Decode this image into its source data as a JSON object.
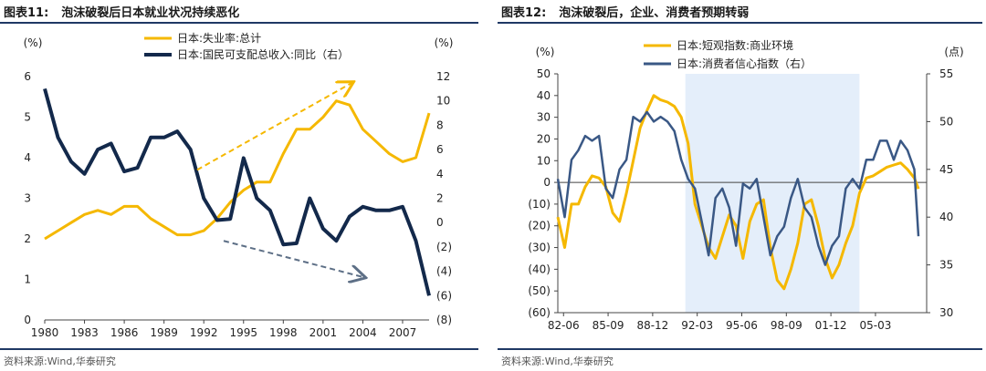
{
  "left": {
    "fig_no": "图表11:",
    "title": "泡沫破裂后日本就业状况持续恶化",
    "source": "资料来源:Wind,华泰研究",
    "unit_left": "(%)",
    "unit_right": "(%)",
    "legend": [
      "日本:失业率:总计",
      "日本:国民可支配总收入:同比（右）"
    ],
    "colors": {
      "series1": "#f5b800",
      "series2": "#13294b",
      "arrow": "#5d6f86"
    },
    "chart_data": {
      "type": "line",
      "x_ticks": [
        "1980",
        "1983",
        "1986",
        "1989",
        "1992",
        "1995",
        "1998",
        "2001",
        "2004",
        "2007"
      ],
      "xlim": [
        1980,
        2009
      ],
      "y_left": {
        "lim": [
          0,
          6
        ],
        "ticks": [
          "0",
          "1",
          "2",
          "3",
          "4",
          "5",
          "6"
        ]
      },
      "y_right": {
        "lim": [
          -8,
          12
        ],
        "ticks": [
          "(8)",
          "(6)",
          "(4)",
          "(2)",
          "0",
          "2",
          "4",
          "6",
          "8",
          "10",
          "12"
        ]
      },
      "series": [
        {
          "name": "日本:失业率:总计",
          "axis": "left",
          "x": [
            1980,
            1981,
            1982,
            1983,
            1984,
            1985,
            1986,
            1987,
            1988,
            1989,
            1990,
            1991,
            1992,
            1993,
            1994,
            1995,
            1996,
            1997,
            1998,
            1999,
            2000,
            2001,
            2002,
            2003,
            2004,
            2005,
            2006,
            2007,
            2008,
            2009
          ],
          "y": [
            2.0,
            2.2,
            2.4,
            2.6,
            2.7,
            2.6,
            2.8,
            2.8,
            2.5,
            2.3,
            2.1,
            2.1,
            2.2,
            2.5,
            2.9,
            3.2,
            3.4,
            3.4,
            4.1,
            4.7,
            4.7,
            5.0,
            5.4,
            5.3,
            4.7,
            4.4,
            4.1,
            3.9,
            4.0,
            5.1
          ]
        },
        {
          "name": "日本:国民可支配总收入:同比（右）",
          "axis": "right",
          "x": [
            1980,
            1981,
            1982,
            1983,
            1984,
            1985,
            1986,
            1987,
            1988,
            1989,
            1990,
            1991,
            1992,
            1993,
            1994,
            1995,
            1996,
            1997,
            1998,
            1999,
            2000,
            2001,
            2002,
            2003,
            2004,
            2005,
            2006,
            2007,
            2008,
            2009
          ],
          "y": [
            11.0,
            7.0,
            5.0,
            4.0,
            6.0,
            6.5,
            4.2,
            4.5,
            7.0,
            7.0,
            7.5,
            6.0,
            2.0,
            0.2,
            0.3,
            5.3,
            2.0,
            1.0,
            -1.8,
            -1.7,
            2.0,
            -0.5,
            -1.5,
            0.5,
            1.3,
            1.0,
            1.0,
            1.3,
            -1.5,
            -6.0
          ]
        }
      ]
    }
  },
  "right": {
    "fig_no": "图表12:",
    "title": "泡沫破裂后，企业、消费者预期转弱",
    "source": "资料来源:Wind,华泰研究",
    "unit_left": "(%)",
    "unit_right": "(点)",
    "legend": [
      "日本:短观指数:商业环境",
      "日本:消费者信心指数（右）"
    ],
    "colors": {
      "series1": "#f5b800",
      "series2": "#3a5885",
      "shade": "#e4eefa"
    },
    "chart_data": {
      "type": "line",
      "x_ticks": [
        "82-06",
        "85-09",
        "88-12",
        "92-03",
        "95-06",
        "98-09",
        "01-12",
        "05-03"
      ],
      "xlim": [
        1982.0,
        2008.9
      ],
      "y_left": {
        "lim": [
          -60,
          50
        ],
        "ticks": [
          "(60)",
          "(50)",
          "(40)",
          "(30)",
          "(20)",
          "(10)",
          "0",
          "10",
          "20",
          "30",
          "40",
          "50"
        ]
      },
      "y_right": {
        "lim": [
          30,
          55
        ],
        "ticks": [
          "30",
          "35",
          "40",
          "45",
          "50",
          "55"
        ]
      },
      "shaded_x": [
        1991.3,
        2004.0
      ],
      "series": [
        {
          "name": "日本:短观指数:商业环境",
          "axis": "left",
          "x": [
            1982.0,
            1982.5,
            1983.0,
            1983.5,
            1984.0,
            1984.5,
            1985.0,
            1985.5,
            1986.0,
            1986.5,
            1987.0,
            1987.5,
            1988.0,
            1988.5,
            1989.0,
            1989.5,
            1990.0,
            1990.5,
            1991.0,
            1991.5,
            1992.0,
            1992.5,
            1993.0,
            1993.5,
            1994.0,
            1994.5,
            1995.0,
            1995.5,
            1996.0,
            1996.5,
            1997.0,
            1997.5,
            1998.0,
            1998.5,
            1999.0,
            1999.5,
            2000.0,
            2000.5,
            2001.0,
            2001.5,
            2002.0,
            2002.5,
            2003.0,
            2003.5,
            2004.0,
            2004.5,
            2005.0,
            2005.5,
            2006.0,
            2006.5,
            2007.0,
            2007.5,
            2008.0,
            2008.3
          ],
          "y": [
            -16,
            -30,
            -10,
            -10,
            -2,
            3,
            2,
            -2,
            -14,
            -18,
            -5,
            10,
            25,
            33,
            40,
            38,
            37,
            35,
            30,
            18,
            -10,
            -20,
            -30,
            -35,
            -25,
            -15,
            -20,
            -35,
            -18,
            -10,
            -8,
            -30,
            -45,
            -49,
            -40,
            -28,
            -10,
            -8,
            -20,
            -35,
            -44,
            -38,
            -28,
            -20,
            -5,
            2,
            3,
            5,
            7,
            8,
            9,
            6,
            2,
            -3
          ]
        },
        {
          "name": "日本:消费者信心指数（右）",
          "axis": "right",
          "x": [
            1982.0,
            1982.5,
            1983.0,
            1983.5,
            1984.0,
            1984.5,
            1985.0,
            1985.5,
            1986.0,
            1986.5,
            1987.0,
            1987.5,
            1988.0,
            1988.5,
            1989.0,
            1989.5,
            1990.0,
            1990.5,
            1991.0,
            1991.5,
            1992.0,
            1992.5,
            1993.0,
            1993.5,
            1994.0,
            1994.5,
            1995.0,
            1995.5,
            1996.0,
            1996.5,
            1997.0,
            1997.5,
            1998.0,
            1998.5,
            1999.0,
            1999.5,
            2000.0,
            2000.5,
            2001.0,
            2001.5,
            2002.0,
            2002.5,
            2003.0,
            2003.5,
            2004.0,
            2004.5,
            2005.0,
            2005.5,
            2006.0,
            2006.5,
            2007.0,
            2007.5,
            2008.0,
            2008.3
          ],
          "y": [
            44,
            40,
            46,
            47,
            48.5,
            48,
            48.5,
            43,
            42,
            45,
            46,
            50.5,
            50,
            51,
            50,
            50.5,
            50,
            49,
            46,
            44,
            43,
            39.5,
            36,
            42,
            43,
            41,
            37,
            43.5,
            43,
            44,
            40,
            36,
            38,
            39,
            42,
            44,
            41,
            40,
            37,
            35,
            37,
            38,
            43,
            44,
            43,
            46,
            46,
            48,
            48,
            46,
            48,
            47,
            45,
            38
          ]
        }
      ]
    }
  }
}
